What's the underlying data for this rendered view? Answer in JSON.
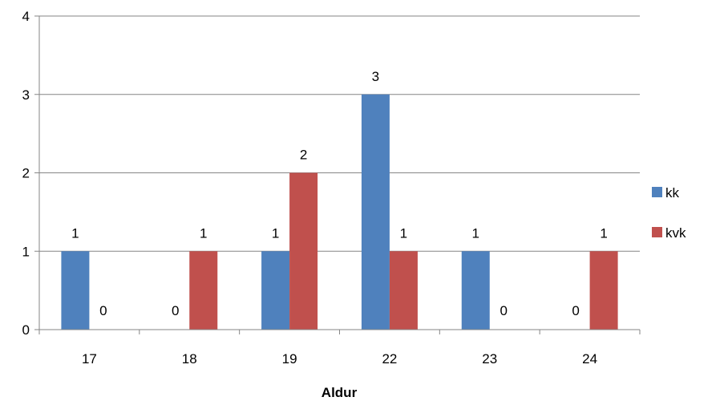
{
  "chart_data": {
    "type": "bar",
    "categories": [
      "17",
      "18",
      "19",
      "22",
      "23",
      "24"
    ],
    "series": [
      {
        "name": "kk",
        "values": [
          1,
          0,
          1,
          3,
          1,
          0
        ],
        "color": "#4f81bd"
      },
      {
        "name": "kvk",
        "values": [
          0,
          1,
          2,
          1,
          0,
          1
        ],
        "color": "#c0504d"
      }
    ],
    "xlabel": "Aldur",
    "ylabel": "",
    "ylim": [
      0,
      4
    ],
    "yticks": [
      0,
      1,
      2,
      3,
      4
    ],
    "grid": true,
    "legend_position": "right",
    "data_labels": true
  }
}
